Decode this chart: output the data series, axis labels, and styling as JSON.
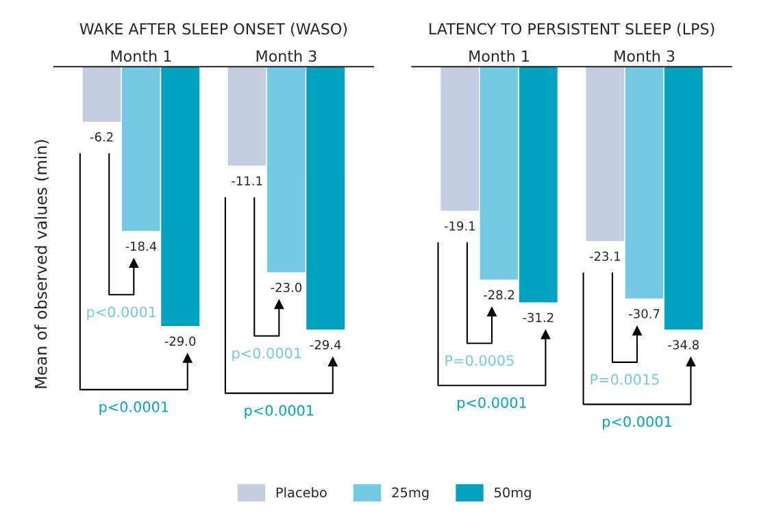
{
  "chart_data": [
    {
      "type": "bar",
      "title": "WAKE AFTER SLEEP ONSET (WASO)",
      "ylabel": "Mean of observed values (min)",
      "categories": [
        "Month 1",
        "Month 3"
      ],
      "legend": "bottom",
      "series": [
        {
          "name": "Placebo",
          "color": "#c5cde0",
          "values": [
            -6.2,
            -11.1
          ],
          "value_labels": [
            "-6.2",
            "-11.1"
          ]
        },
        {
          "name": "25mg",
          "color": "#74c9e3",
          "values": [
            -18.4,
            -23.0
          ],
          "value_labels": [
            "-18.4",
            "-23.0"
          ]
        },
        {
          "name": "50mg",
          "color": "#00a3bf",
          "values": [
            -29.0,
            -29.4
          ],
          "value_labels": [
            "-29.0",
            "-29.4"
          ]
        }
      ],
      "annotations": [
        "p<0.0001",
        "p<0.0001",
        "p<0.0001",
        "p<0.0001"
      ]
    },
    {
      "type": "bar",
      "title": "LATENCY TO PERSISTENT SLEEP (LPS)",
      "categories": [
        "Month 1",
        "Month 3"
      ],
      "series": [
        {
          "color": "#c5cde0",
          "values": [
            -19.1,
            -23.1
          ],
          "value_labels": [
            "-19.1",
            "-23.1"
          ]
        },
        {
          "color": "#74c9e3",
          "values": [
            -28.2,
            -30.7
          ],
          "value_labels": [
            "-28.2",
            "-30.7"
          ]
        },
        {
          "color": "#00a3bf",
          "values": [
            -31.2,
            -34.8
          ],
          "value_labels": [
            "-31.2",
            "-34.8"
          ]
        }
      ],
      "annotations": [
        "P=0.0005",
        "p<0.0001",
        "P=0.0015",
        "p<0.0001"
      ]
    }
  ]
}
